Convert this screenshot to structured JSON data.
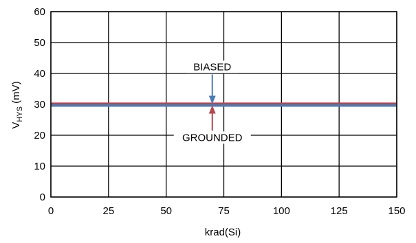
{
  "chart_data": {
    "type": "line",
    "xlabel": "krad(Si)",
    "ylabel_main": "V",
    "ylabel_sub": "HYS",
    "ylabel_unit": " (mV)",
    "xlim": [
      0,
      150
    ],
    "ylim": [
      0,
      60
    ],
    "xticks": [
      0,
      25,
      50,
      75,
      100,
      125,
      150
    ],
    "yticks": [
      0,
      10,
      20,
      30,
      40,
      50,
      60
    ],
    "grid": true,
    "series": [
      {
        "name": "GROUNDED",
        "color": "#b5474e",
        "x": [
          0,
          150
        ],
        "y": [
          30.2,
          30.2
        ]
      },
      {
        "name": "BIASED",
        "color": "#4a7ab8",
        "x": [
          0,
          150
        ],
        "y": [
          29.6,
          29.6
        ]
      }
    ],
    "annotations": [
      {
        "text": "BIASED",
        "x": 70,
        "y": 29.9,
        "color": "#4a7ab8",
        "direction": "down"
      },
      {
        "text": "GROUNDED",
        "x": 70,
        "y": 29.9,
        "color": "#b5474e",
        "direction": "up"
      }
    ]
  }
}
